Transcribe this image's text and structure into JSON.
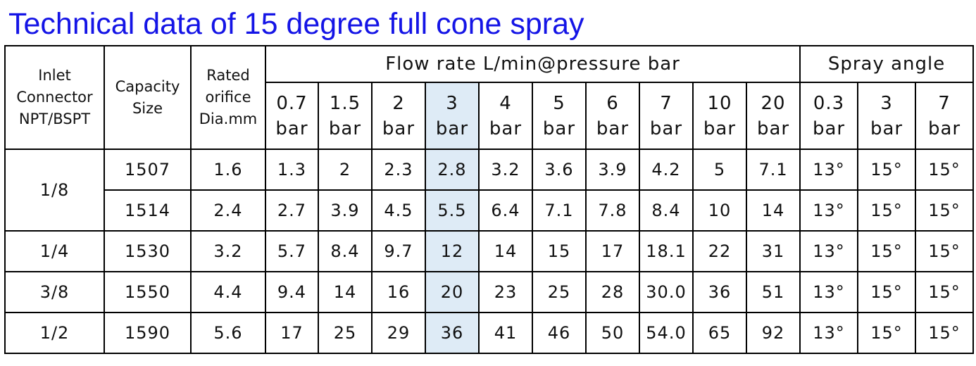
{
  "title": "Technical data of 15 degree full cone spray",
  "header": {
    "inlet": "Inlet\nConnector\nNPT/BSPT",
    "capacity": "Capacity\nSize",
    "orifice": "Rated\norifice\nDia.mm",
    "flow_group": "Flow rate L/min@pressure bar",
    "angle_group": "Spray angle",
    "flow": [
      "0.7\nbar",
      "1.5\nbar",
      "2\nbar",
      "3\nbar",
      "4\nbar",
      "5\nbar",
      "6\nbar",
      "7\nbar",
      "10\nbar",
      "20\nbar"
    ],
    "angle": [
      "0.3\nbar",
      "3\nbar",
      "7\nbar"
    ]
  },
  "groups": [
    {
      "inlet": "1/8",
      "rows": [
        {
          "capacity": "1507",
          "orifice": "1.6",
          "flow": [
            "1.3",
            "2",
            "2.3",
            "2.8",
            "3.2",
            "3.6",
            "3.9",
            "4.2",
            "5",
            "7.1"
          ],
          "angle": [
            "13°",
            "15°",
            "15°"
          ]
        },
        {
          "capacity": "1514",
          "orifice": "2.4",
          "flow": [
            "2.7",
            "3.9",
            "4.5",
            "5.5",
            "6.4",
            "7.1",
            "7.8",
            "8.4",
            "10",
            "14"
          ],
          "angle": [
            "13°",
            "15°",
            "15°"
          ]
        }
      ]
    },
    {
      "inlet": "1/4",
      "rows": [
        {
          "capacity": "1530",
          "orifice": "3.2",
          "flow": [
            "5.7",
            "8.4",
            "9.7",
            "12",
            "14",
            "15",
            "17",
            "18.1",
            "22",
            "31"
          ],
          "angle": [
            "13°",
            "15°",
            "15°"
          ]
        }
      ]
    },
    {
      "inlet": "3/8",
      "rows": [
        {
          "capacity": "1550",
          "orifice": "4.4",
          "flow": [
            "9.4",
            "14",
            "16",
            "20",
            "23",
            "25",
            "28",
            "30.0",
            "36",
            "51"
          ],
          "angle": [
            "13°",
            "15°",
            "15°"
          ]
        }
      ]
    },
    {
      "inlet": "1/2",
      "rows": [
        {
          "capacity": "1590",
          "orifice": "5.6",
          "flow": [
            "17",
            "25",
            "29",
            "36",
            "41",
            "46",
            "50",
            "54.0",
            "65",
            "92"
          ],
          "angle": [
            "13°",
            "15°",
            "15°"
          ]
        }
      ]
    }
  ]
}
